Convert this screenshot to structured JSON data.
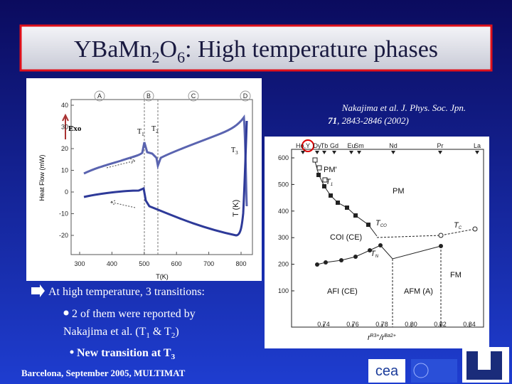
{
  "title": {
    "parts": [
      "YBa",
      "Mn",
      "2",
      "O",
      "6",
      ": High temperature phases"
    ]
  },
  "citation": {
    "line1": "Nakajima et al.  J. Phys. Soc. Jpn.",
    "volume": "71",
    "line2": ", 2843-2846 (2002)"
  },
  "figure_left": {
    "markers": [
      "A",
      "B",
      "C",
      "D"
    ],
    "y_label": "Heat Flow (mW)",
    "x_label": "T(K)",
    "exo": "Exo",
    "yticks": [
      "40",
      "30",
      "20",
      "10",
      "0",
      "-10",
      "-20"
    ],
    "xticks": [
      "300",
      "400",
      "500",
      "600",
      "700",
      "800"
    ],
    "annotations": [
      {
        "base": "T",
        "sub": "1"
      },
      {
        "base": "T",
        "sub": "2"
      },
      {
        "base": "T",
        "sub": "3"
      }
    ]
  },
  "figure_right": {
    "top_labels": [
      "Ho,Y",
      "Dy",
      "Tb",
      "Gd",
      "Eu",
      "Sm",
      "Nd",
      "Pr",
      "La"
    ],
    "yticks": [
      "100",
      "200",
      "300",
      "400",
      "500",
      "600"
    ],
    "xticks": [
      "0.74",
      "0.76",
      "0.78",
      "0.80",
      "0.82",
      "0.84"
    ],
    "y_label": "T (K)",
    "x_label": {
      "r1": "r",
      "sup1": "R3+",
      "mid": "/r",
      "sup2": "Ba2+"
    },
    "phases": [
      "PM'",
      "PM",
      "COI (CE)",
      "AFI (CE)",
      "AFM (A)",
      "FM"
    ],
    "transitions": [
      {
        "base": "T",
        "sub": "1"
      },
      {
        "base": "T",
        "sub": "CO"
      },
      {
        "base": "T",
        "sub": "N"
      },
      {
        "base": "T",
        "sub": "C"
      }
    ]
  },
  "bullets": [
    {
      "text": "At high temperature, 3 transitions:"
    },
    {
      "line1": "2 of them were reported by",
      "line2": [
        "Nakajima et al. (T",
        "1",
        " & T",
        "2",
        ")"
      ]
    },
    {
      "parts": [
        "New transition  at T",
        "3"
      ]
    }
  ],
  "footer": "Barcelona, September 2005, MULTIMAT",
  "logos": {
    "cea": "cea"
  }
}
